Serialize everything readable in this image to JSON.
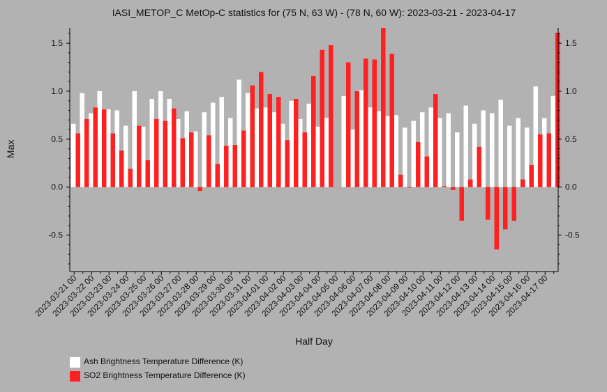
{
  "chart_data": {
    "type": "bar",
    "title": "IASI_METOP_C MetOp-C statistics for (75 N, 63 W) - (78 N, 60 W): 2023-03-21 - 2023-04-17",
    "xlabel": "Half Day",
    "ylabel": "Max",
    "ylim": [
      -0.88,
      1.66
    ],
    "yticks": [
      -0.5,
      0.0,
      0.5,
      1.0,
      1.5
    ],
    "ytick_labels": [
      "-0.5",
      "0.0",
      "0.5",
      "1.0",
      "1.5"
    ],
    "categories": [
      "2023-03-21 00",
      "2023-03-21 12",
      "2023-03-22 00",
      "2023-03-22 12",
      "2023-03-23 00",
      "2023-03-23 12",
      "2023-03-24 00",
      "2023-03-24 12",
      "2023-03-25 00",
      "2023-03-25 12",
      "2023-03-26 00",
      "2023-03-26 12",
      "2023-03-27 00",
      "2023-03-27 12",
      "2023-03-28 00",
      "2023-03-28 12",
      "2023-03-29 00",
      "2023-03-29 12",
      "2023-03-30 00",
      "2023-03-30 12",
      "2023-03-31 00",
      "2023-03-31 12",
      "2023-04-01 00",
      "2023-04-01 12",
      "2023-04-02 00",
      "2023-04-02 12",
      "2023-04-03 00",
      "2023-04-03 12",
      "2023-04-04 00",
      "2023-04-04 12",
      "2023-04-05 00",
      "2023-04-05 12",
      "2023-04-06 00",
      "2023-04-06 12",
      "2023-04-07 00",
      "2023-04-07 12",
      "2023-04-08 00",
      "2023-04-08 12",
      "2023-04-09 00",
      "2023-04-09 12",
      "2023-04-10 00",
      "2023-04-10 12",
      "2023-04-11 00",
      "2023-04-11 12",
      "2023-04-12 00",
      "2023-04-12 12",
      "2023-04-13 00",
      "2023-04-13 12",
      "2023-04-14 00",
      "2023-04-14 12",
      "2023-04-15 00",
      "2023-04-15 12",
      "2023-04-16 00",
      "2023-04-16 12",
      "2023-04-17 00",
      "2023-04-17 12"
    ],
    "tick_labels": [
      "2023-03-21 00",
      "2023-03-22 00",
      "2023-03-23 00",
      "2023-03-24 00",
      "2023-03-25 00",
      "2023-03-26 00",
      "2023-03-27 00",
      "2023-03-28 00",
      "2023-03-29 00",
      "2023-03-30 00",
      "2023-03-31 00",
      "2023-04-01 00",
      "2023-04-02 00",
      "2023-04-03 00",
      "2023-04-04 00",
      "2023-04-05 00",
      "2023-04-06 00",
      "2023-04-07 00",
      "2023-04-08 00",
      "2023-04-09 00",
      "2023-04-10 00",
      "2023-04-11 00",
      "2023-04-12 00",
      "2023-04-13 00",
      "2023-04-14 00",
      "2023-04-15 00",
      "2023-04-16 00",
      "2023-04-17 00"
    ],
    "series": [
      {
        "name": "Ash Brightness Temperature Difference (K)",
        "color": "#ffffff",
        "values": [
          0.66,
          0.98,
          0.77,
          1.0,
          0.81,
          0.8,
          0.64,
          1.0,
          0.63,
          0.92,
          1.0,
          0.92,
          0.71,
          0.79,
          0.58,
          0.78,
          0.88,
          0.94,
          0.72,
          1.12,
          0.98,
          0.82,
          0.83,
          0.78,
          0.66,
          0.9,
          0.71,
          0.87,
          0.63,
          0.72,
          null,
          0.95,
          0.6,
          1.01,
          0.83,
          0.79,
          0.74,
          0.75,
          0.62,
          0.69,
          0.78,
          0.83,
          0.72,
          0.77,
          0.57,
          0.85,
          0.66,
          0.8,
          0.77,
          0.91,
          0.64,
          0.72,
          0.62,
          1.05,
          0.72,
          0.95
        ]
      },
      {
        "name": "SO2 Brightness Temperature Difference (K)",
        "color": "#ff2020",
        "values": [
          0.56,
          0.71,
          0.83,
          0.81,
          0.56,
          0.38,
          0.19,
          0.64,
          0.28,
          0.71,
          0.69,
          0.82,
          0.51,
          0.57,
          -0.04,
          0.54,
          0.24,
          0.43,
          0.44,
          0.59,
          1.06,
          1.2,
          0.97,
          0.94,
          0.49,
          0.92,
          0.57,
          1.16,
          1.43,
          1.48,
          null,
          1.3,
          1.0,
          1.34,
          1.33,
          1.66,
          1.39,
          0.13,
          0.0,
          0.47,
          0.32,
          0.97,
          0.01,
          -0.03,
          -0.35,
          0.08,
          0.42,
          -0.34,
          -0.65,
          -0.44,
          -0.35,
          0.08,
          0.23,
          0.55,
          0.56,
          1.61
        ]
      }
    ],
    "legend_position": "bottom-left",
    "grid": false
  }
}
